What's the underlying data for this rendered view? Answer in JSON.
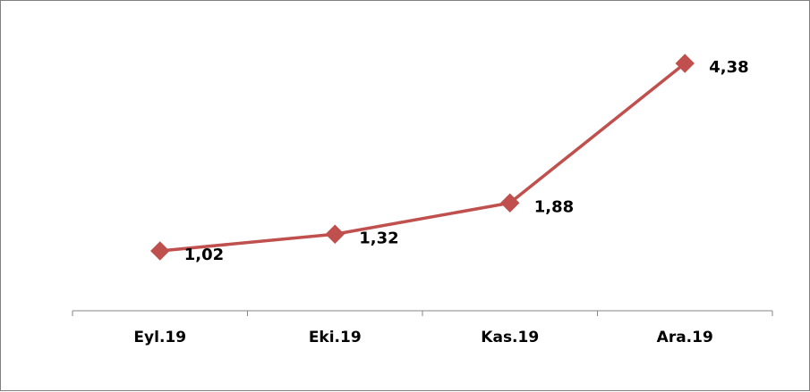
{
  "chart_data": {
    "type": "line",
    "categories": [
      "Eyl.19",
      "Eki.19",
      "Kas.19",
      "Ara.19"
    ],
    "series": [
      {
        "values": [
          1.02,
          1.32,
          1.88,
          4.38
        ],
        "labels": [
          "1,02",
          "1,32",
          "1,88",
          "4,38"
        ],
        "color": "#C0504D",
        "marker": "diamond"
      }
    ],
    "title": "",
    "xlabel": "",
    "ylabel": "",
    "grid": false,
    "legend": "none"
  }
}
